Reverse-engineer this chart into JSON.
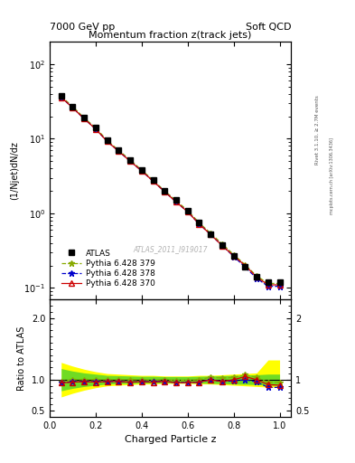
{
  "title_main": "Momentum fraction z(track jets)",
  "header_left": "7000 GeV pp",
  "header_right": "Soft QCD",
  "ylabel_main": "(1/Njet)dN/dz",
  "ylabel_ratio": "Ratio to ATLAS",
  "xlabel": "Charged Particle z",
  "watermark": "ATLAS_2011_I919017",
  "right_label": "Rivet 3.1.10, ≥ 2.7M events",
  "right_label2": "mcplots.cern.ch [arXiv:1306.3436]",
  "xlim": [
    0.0,
    1.05
  ],
  "ylim_main": [
    0.07,
    200
  ],
  "ylim_ratio": [
    0.4,
    2.3
  ],
  "z_values": [
    0.05,
    0.1,
    0.15,
    0.2,
    0.25,
    0.3,
    0.35,
    0.4,
    0.45,
    0.5,
    0.55,
    0.6,
    0.65,
    0.7,
    0.75,
    0.8,
    0.85,
    0.9,
    0.95,
    1.0
  ],
  "atlas_y": [
    38,
    27,
    19,
    14,
    9.5,
    7.0,
    5.2,
    3.8,
    2.8,
    2.0,
    1.5,
    1.1,
    0.75,
    0.52,
    0.38,
    0.27,
    0.19,
    0.14,
    0.12,
    0.12
  ],
  "py370_y": [
    36,
    26,
    18.5,
    13.5,
    9.2,
    6.8,
    5.0,
    3.7,
    2.7,
    1.95,
    1.42,
    1.05,
    0.72,
    0.52,
    0.37,
    0.27,
    0.2,
    0.14,
    0.11,
    0.11
  ],
  "py378_y": [
    36,
    26,
    18.5,
    13.5,
    9.2,
    6.8,
    5.0,
    3.7,
    2.7,
    1.95,
    1.42,
    1.05,
    0.72,
    0.52,
    0.37,
    0.265,
    0.19,
    0.135,
    0.105,
    0.105
  ],
  "py379_y": [
    37,
    27,
    19.0,
    14.0,
    9.5,
    7.0,
    5.2,
    3.8,
    2.78,
    2.0,
    1.48,
    1.09,
    0.75,
    0.54,
    0.39,
    0.28,
    0.205,
    0.145,
    0.115,
    0.115
  ],
  "ratio_370": [
    0.95,
    0.96,
    0.97,
    0.96,
    0.97,
    0.97,
    0.96,
    0.97,
    0.96,
    0.975,
    0.95,
    0.955,
    0.96,
    1.0,
    0.97,
    1.0,
    1.05,
    1.0,
    0.92,
    0.91
  ],
  "ratio_378": [
    0.95,
    0.965,
    0.975,
    0.965,
    0.97,
    0.97,
    0.96,
    0.97,
    0.965,
    0.975,
    0.95,
    0.954,
    0.96,
    1.0,
    0.97,
    0.98,
    1.0,
    0.965,
    0.875,
    0.875
  ],
  "ratio_379": [
    0.97,
    1.0,
    1.0,
    1.0,
    1.0,
    1.0,
    1.0,
    1.0,
    0.99,
    1.0,
    0.987,
    0.99,
    1.0,
    1.04,
    1.026,
    1.037,
    1.079,
    1.036,
    0.958,
    0.958
  ],
  "band_yellow_lo": [
    0.72,
    0.78,
    0.83,
    0.87,
    0.9,
    0.91,
    0.92,
    0.93,
    0.93,
    0.94,
    0.94,
    0.94,
    0.93,
    0.93,
    0.92,
    0.91,
    0.9,
    0.89,
    0.88,
    0.88
  ],
  "band_yellow_hi": [
    1.28,
    1.22,
    1.17,
    1.13,
    1.1,
    1.09,
    1.08,
    1.07,
    1.07,
    1.06,
    1.06,
    1.06,
    1.07,
    1.07,
    1.08,
    1.09,
    1.1,
    1.11,
    1.32,
    1.32
  ],
  "band_green_lo": [
    0.82,
    0.86,
    0.89,
    0.91,
    0.93,
    0.935,
    0.94,
    0.945,
    0.945,
    0.95,
    0.95,
    0.95,
    0.945,
    0.94,
    0.935,
    0.93,
    0.925,
    0.92,
    0.91,
    0.91
  ],
  "band_green_hi": [
    1.18,
    1.14,
    1.11,
    1.09,
    1.07,
    1.065,
    1.06,
    1.055,
    1.055,
    1.05,
    1.05,
    1.05,
    1.055,
    1.06,
    1.065,
    1.07,
    1.075,
    1.08,
    1.09,
    1.09
  ],
  "color_atlas": "#000000",
  "color_py370": "#cc0000",
  "color_py378": "#0000cc",
  "color_py379": "#88aa00",
  "bg_color": "#ffffff"
}
